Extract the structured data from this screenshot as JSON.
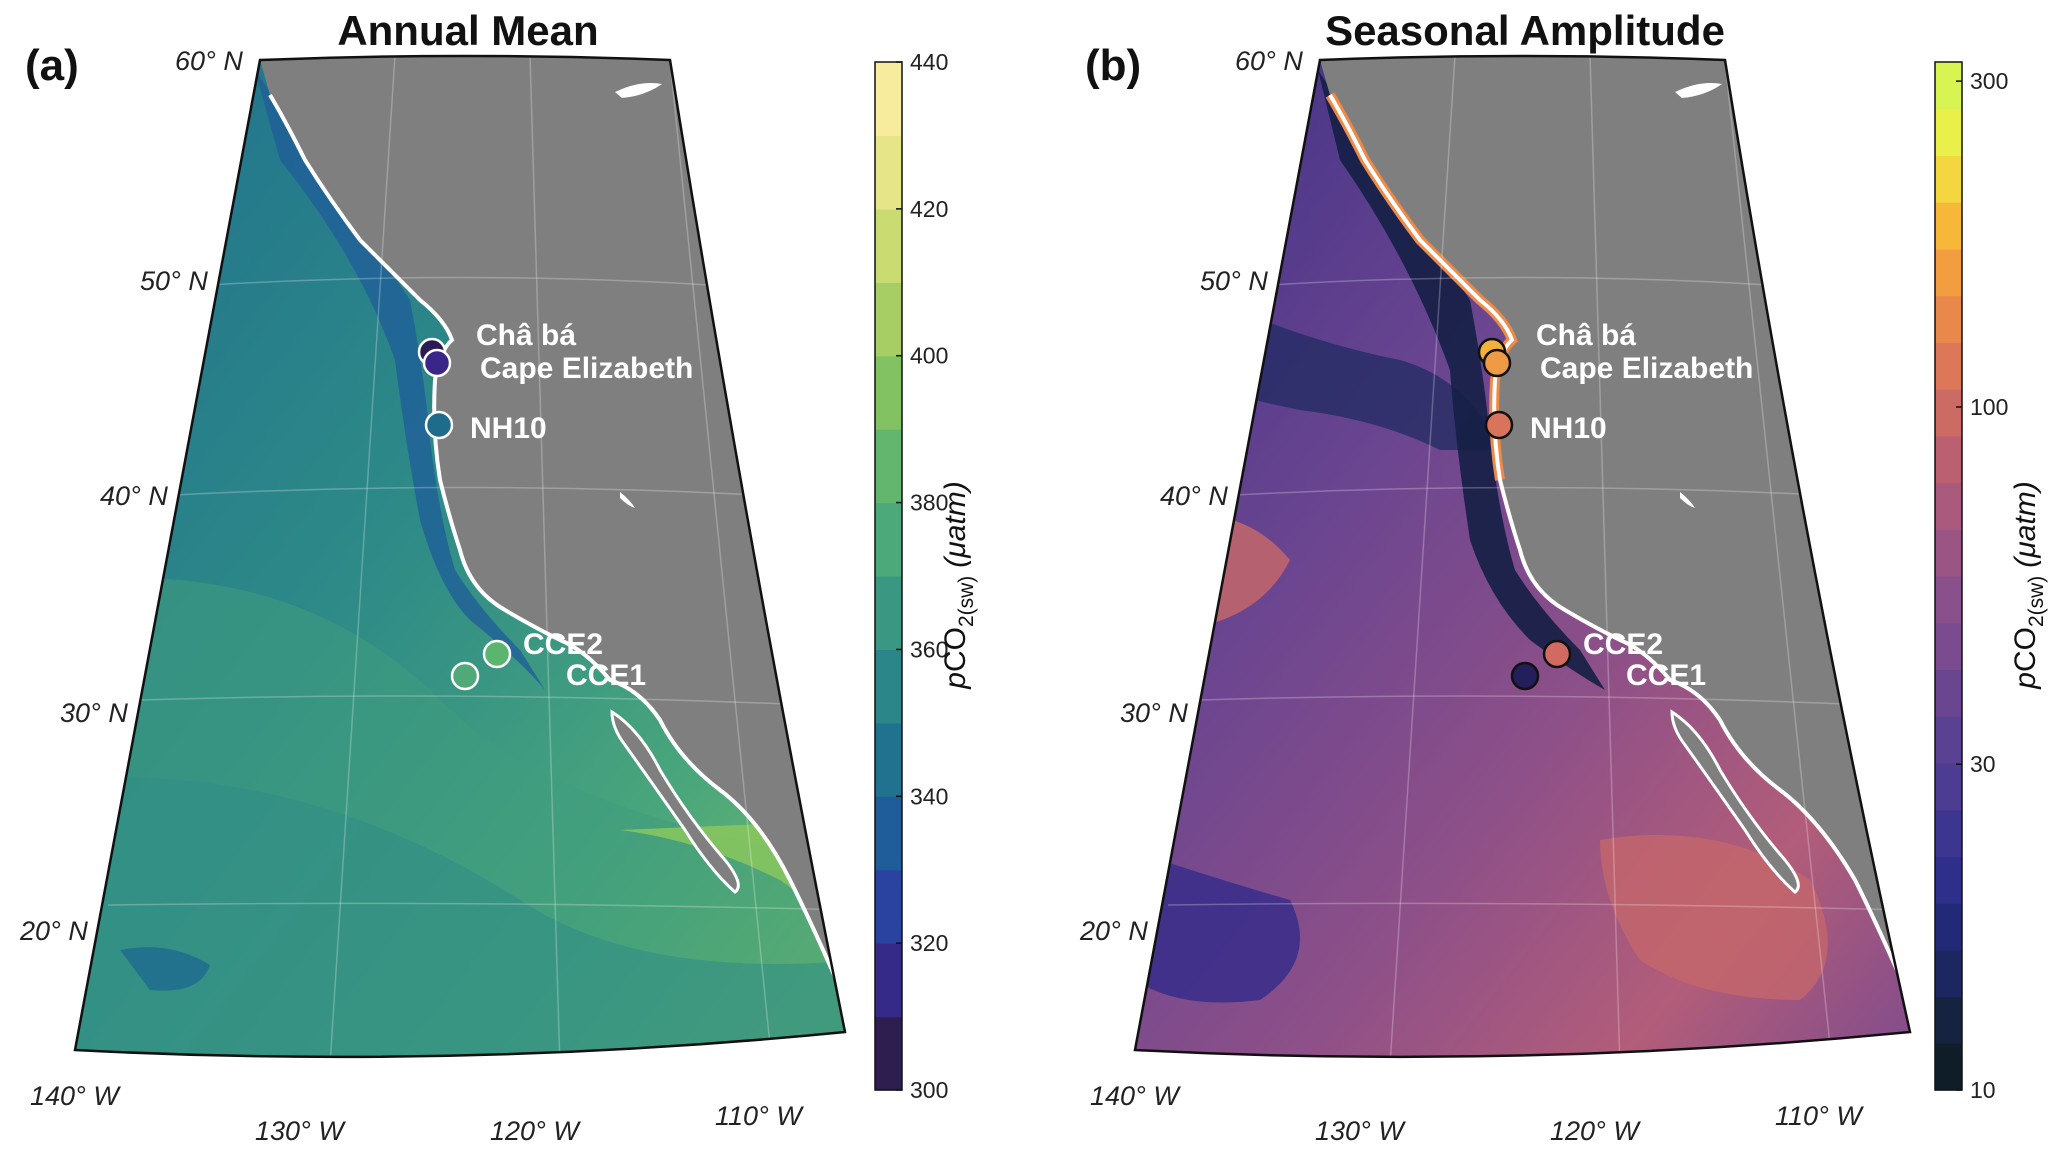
{
  "panels": [
    {
      "label": "(a)",
      "title": "Annual Mean",
      "colorbar": {
        "label_prefix": "p",
        "label_main": "CO",
        "label_sub": "2(sw)",
        "units": "(μatm)",
        "scale": "linear",
        "range": [
          300,
          440
        ],
        "ticks": [
          300,
          320,
          340,
          360,
          380,
          400,
          420,
          440
        ],
        "colors": [
          "#2d1e4f",
          "#352a87",
          "#2a43a0",
          "#1e5c9a",
          "#20728f",
          "#2a8689",
          "#3a9882",
          "#4ca97a",
          "#62b66e",
          "#82c262",
          "#a6ce64",
          "#cadb72",
          "#e6e588",
          "#f7eb9e"
        ]
      },
      "sites": [
        {
          "name": "Châ bá",
          "color": "#2a1a55"
        },
        {
          "name": "Cape Elizabeth",
          "color": "#3a2688"
        },
        {
          "name": "NH10",
          "color": "#1f6b8c"
        },
        {
          "name": "CCE2",
          "color": "#5ab66e"
        },
        {
          "name": "CCE1",
          "color": "#4fa978"
        }
      ]
    },
    {
      "label": "(b)",
      "title": "Seasonal Amplitude",
      "colorbar": {
        "label_prefix": "p",
        "label_main": "CO",
        "label_sub": "2(sw)",
        "units": "(μatm)",
        "scale": "log",
        "range": [
          10,
          320
        ],
        "ticks": [
          10,
          30,
          100,
          300
        ],
        "colors": [
          "#0f1d29",
          "#152240",
          "#1c2660",
          "#222a78",
          "#2e2f8a",
          "#3c3690",
          "#4c3c92",
          "#5b4192",
          "#6a4690",
          "#7a4b8e",
          "#8a508b",
          "#9a5585",
          "#aa5a7d",
          "#bb6070",
          "#cc6a64",
          "#dc7758",
          "#e9884b",
          "#f29e40",
          "#f7b83a",
          "#f4d640",
          "#eaf04a",
          "#d8f452"
        ]
      },
      "sites": [
        {
          "name": "Châ bá",
          "color": "#f3b13b"
        },
        {
          "name": "Cape Elizabeth",
          "color": "#ef9a45"
        },
        {
          "name": "NH10",
          "color": "#d9735b"
        },
        {
          "name": "CCE2",
          "color": "#d26a62"
        },
        {
          "name": "CCE1",
          "color": "#241f5a"
        }
      ]
    }
  ],
  "grid": {
    "lat_labels": [
      "60° N",
      "50° N",
      "40° N",
      "30° N",
      "20° N"
    ],
    "lon_labels": [
      "140° W",
      "130° W",
      "120° W",
      "110° W"
    ]
  },
  "style": {
    "land": "#7f7f7f",
    "coast": "#ffffff"
  }
}
